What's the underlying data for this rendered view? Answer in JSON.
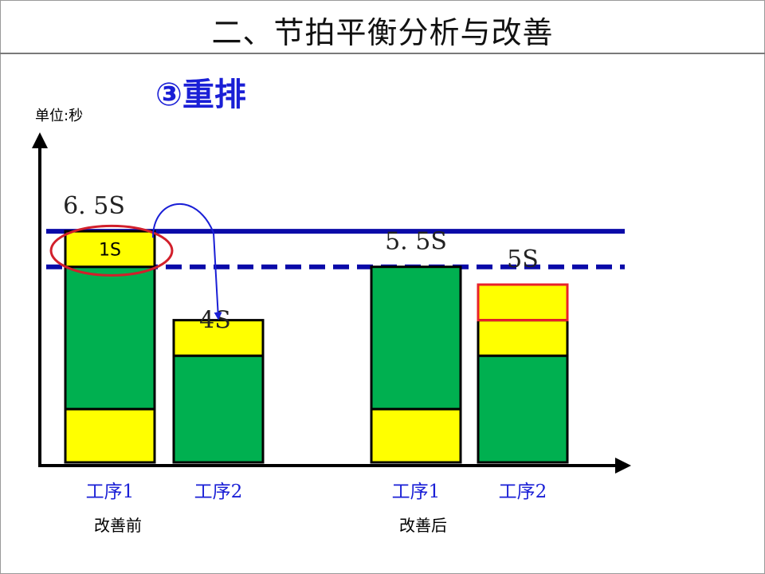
{
  "slide": {
    "title": "二、节拍平衡分析与改善",
    "subtitle": "③重排"
  },
  "chart_data": {
    "type": "bar",
    "stacked": true,
    "unit_label": "单位:秒",
    "ylim": [
      0,
      8
    ],
    "categories": [
      "工序1",
      "工序2",
      "工序1",
      "工序2"
    ],
    "groups": [
      {
        "label": "改善前",
        "category_indices": [
          0,
          1
        ]
      },
      {
        "label": "改善后",
        "category_indices": [
          2,
          3
        ]
      }
    ],
    "bars": [
      {
        "segments": [
          {
            "value": 1.5,
            "color": "#ffff00"
          },
          {
            "value": 4.0,
            "color": "#00b050"
          },
          {
            "value": 1.0,
            "color": "#ffff00",
            "label": "1S",
            "highlight": true
          }
        ],
        "total_label": "6. 5S"
      },
      {
        "segments": [
          {
            "value": 3.0,
            "color": "#00b050"
          },
          {
            "value": 1.0,
            "color": "#ffff00"
          }
        ],
        "total_label": "4S"
      },
      {
        "segments": [
          {
            "value": 1.5,
            "color": "#ffff00"
          },
          {
            "value": 4.0,
            "color": "#00b050"
          }
        ],
        "total_label": "5. 5S"
      },
      {
        "segments": [
          {
            "value": 3.0,
            "color": "#00b050"
          },
          {
            "value": 1.0,
            "color": "#ffff00"
          },
          {
            "value": 1.0,
            "color": "#ffff00",
            "moved": true
          }
        ],
        "total_label": "5S"
      }
    ],
    "reference_lines": [
      {
        "value": 6.5,
        "style": "solid",
        "color": "#0a0aa8"
      },
      {
        "value": 5.5,
        "style": "dashed",
        "color": "#0a0aa8"
      }
    ],
    "annotation": {
      "type": "arrow",
      "from_bar": 0,
      "to_bar": 1,
      "color": "#1a1fd6"
    }
  }
}
